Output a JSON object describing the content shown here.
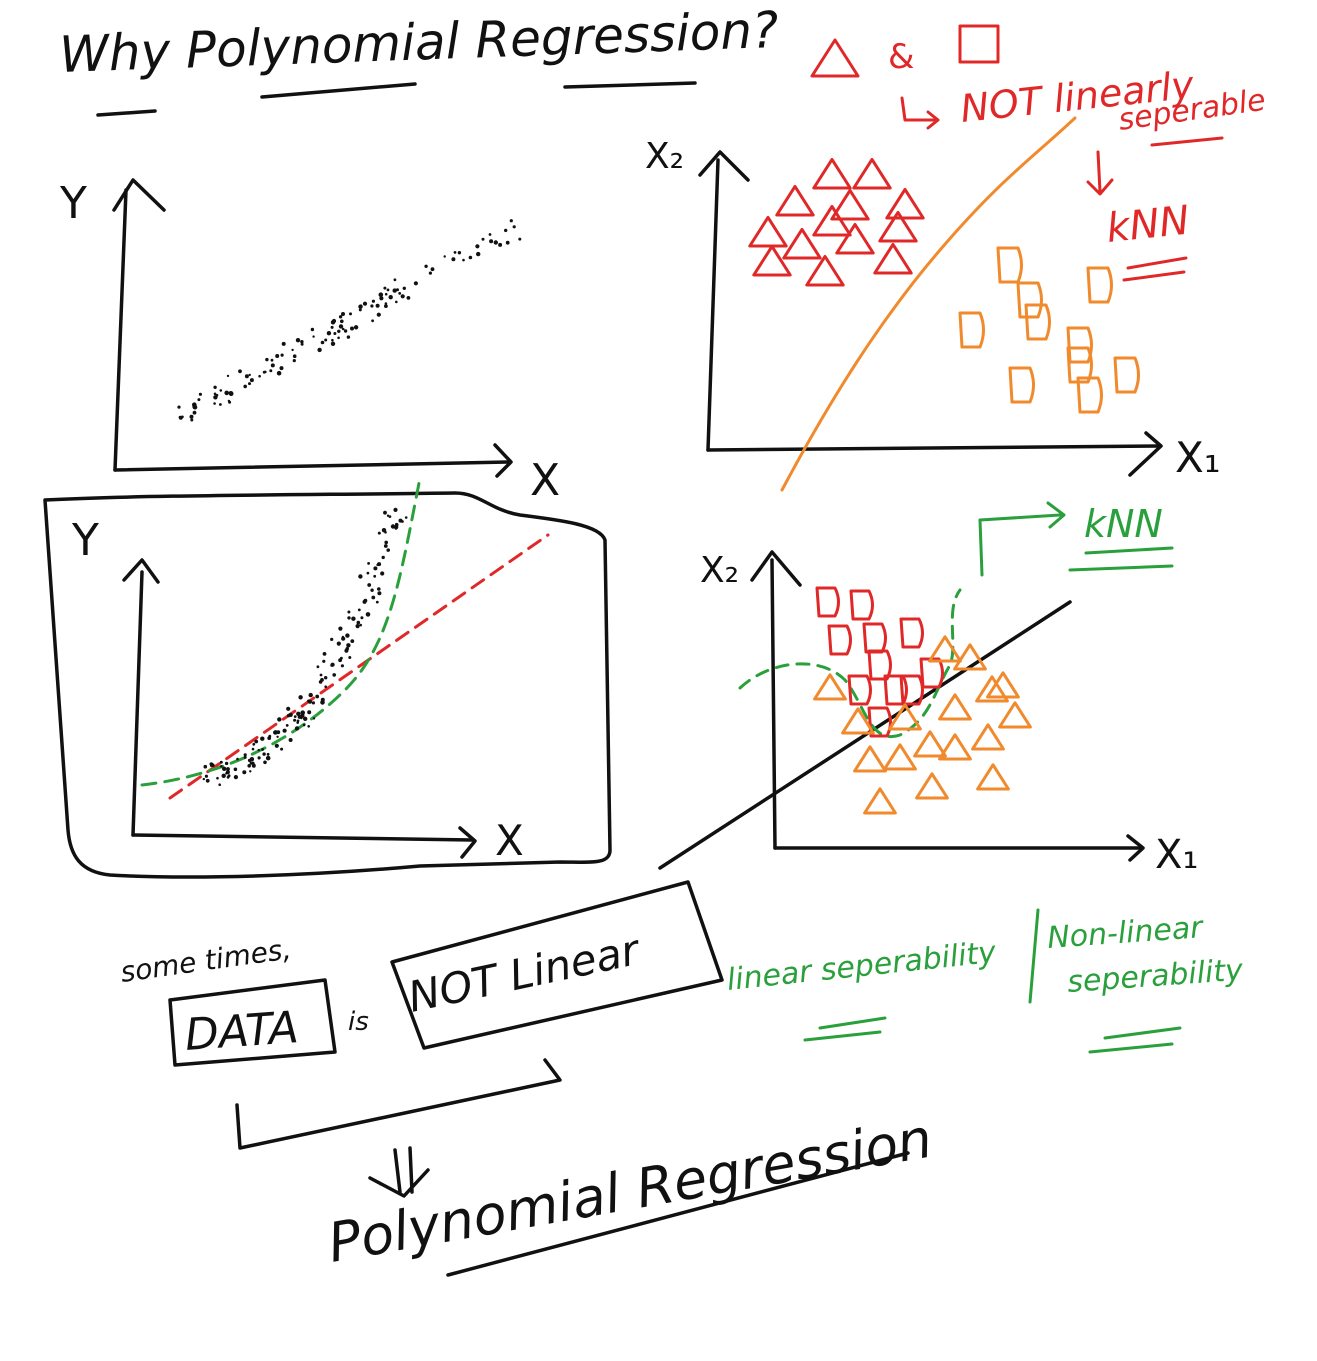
{
  "title": "Why Polynomial Regression?",
  "top_note": {
    "shapes_line": "& ",
    "not_linearly": "NOT linearly",
    "separable": "seperable",
    "knn": "kNN"
  },
  "panels": {
    "linear_scatter": {
      "x_label": "X",
      "y_label": "Y"
    },
    "separable_classes": {
      "x_label": "X₁",
      "y_label": "X₂"
    },
    "curved_scatter": {
      "x_label": "X",
      "y_label": "Y"
    },
    "nonseparable_classes": {
      "x_label": "X₁",
      "y_label": "X₂",
      "knn_label": "kNN"
    }
  },
  "notes": {
    "sometimes": "some times,",
    "data_box": "DATA",
    "is": "is",
    "not_linear_box": "NOT Linear",
    "linear_sep": "linear seperability",
    "nonlinear_sep_line1": "Non-linear",
    "nonlinear_sep_line2": "seperability",
    "conclusion": "Polynomial Regression"
  },
  "colors": {
    "ink": "#111111",
    "red": "#e02828",
    "green": "#2aa03c",
    "orange": "#f08a2c"
  }
}
